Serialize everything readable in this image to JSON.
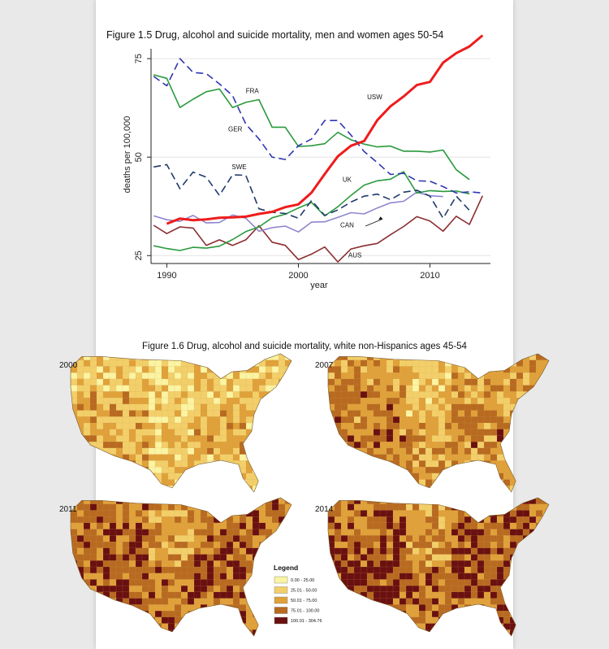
{
  "colors": {
    "USW": "#ee1c1c",
    "FRA": "#2a9a3c",
    "GER": "#2f37b0",
    "SWE": "#203a6a",
    "UK": "#2a9a3c",
    "CAN": "#8f86d0",
    "AUS": "#8b2e30"
  },
  "chart_data": {
    "type": "line",
    "title": "Figure 1.5  Drug, alcohol and suicide mortality, men and women ages 50-54",
    "xlabel": "year",
    "ylabel": "deaths per 100,000",
    "xlim": [
      1988.8,
      2014.6
    ],
    "ylim": [
      23,
      77.5
    ],
    "xticks": [
      1990,
      2000,
      2010
    ],
    "yticks": [
      25,
      50,
      75
    ],
    "grid": true,
    "series": [
      {
        "name": "USW",
        "style": "solid-thick",
        "x": [
          1990,
          1991,
          1992,
          1993,
          1994,
          1995,
          1996,
          1997,
          1998,
          1999,
          2000,
          2001,
          2002,
          2003,
          2004,
          2005,
          2006,
          2007,
          2008,
          2009,
          2010,
          2011,
          2012,
          2013,
          2014
        ],
        "values": [
          33.1,
          34.4,
          34.0,
          34.2,
          34.6,
          34.7,
          34.9,
          35.6,
          36.1,
          37.3,
          38.0,
          41.0,
          45.7,
          50.2,
          52.9,
          54.1,
          59.4,
          62.9,
          65.4,
          68.3,
          69.1,
          74.0,
          76.4,
          78.1,
          80.9
        ]
      },
      {
        "name": "FRA",
        "style": "solid",
        "x": [
          1989,
          1990,
          1991,
          1992,
          1993,
          1994,
          1995,
          1996,
          1997,
          1998,
          1999,
          2000,
          2001,
          2002,
          2003,
          2004,
          2005,
          2006,
          2007,
          2008,
          2009,
          2010,
          2011,
          2012,
          2013
        ],
        "values": [
          70.9,
          70.0,
          62.6,
          64.7,
          66.6,
          67.3,
          62.6,
          63.9,
          64.6,
          57.6,
          57.6,
          52.7,
          52.9,
          53.4,
          56.3,
          54.4,
          53.3,
          52.6,
          52.8,
          51.5,
          51.5,
          51.3,
          51.8,
          46.8,
          44.3
        ]
      },
      {
        "name": "GER",
        "style": "dashed",
        "x": [
          1989,
          1990,
          1991,
          1992,
          1993,
          1994,
          1995,
          1996,
          1997,
          1998,
          1999,
          2000,
          2001,
          2002,
          2003,
          2004,
          2005,
          2006,
          2007,
          2008,
          2009,
          2010,
          2011,
          2012,
          2013,
          2014
        ],
        "values": [
          70.5,
          68.1,
          75.0,
          71.5,
          71.2,
          68.6,
          65.6,
          58.4,
          54.6,
          50.0,
          49.4,
          52.9,
          54.6,
          59.3,
          59.3,
          55.6,
          51.4,
          48.6,
          45.6,
          45.9,
          44.0,
          43.9,
          42.5,
          40.9,
          41.2,
          40.9
        ]
      },
      {
        "name": "SWE",
        "style": "dashed",
        "x": [
          1989,
          1990,
          1991,
          1992,
          1993,
          1994,
          1995,
          1996,
          1997,
          1998,
          1999,
          2000,
          2001,
          2002,
          2003,
          2004,
          2005,
          2006,
          2007,
          2008,
          2009,
          2010,
          2011,
          2012,
          2013
        ],
        "values": [
          47.5,
          48.1,
          42.0,
          46.2,
          44.9,
          40.3,
          45.5,
          45.4,
          36.9,
          36.0,
          35.7,
          34.5,
          39.0,
          35.2,
          36.6,
          38.6,
          40.1,
          40.6,
          39.2,
          41.1,
          41.6,
          40.1,
          34.5,
          40.1,
          36.5
        ]
      },
      {
        "name": "UK",
        "style": "solid",
        "x": [
          1989,
          1990,
          1991,
          1992,
          1993,
          1994,
          1995,
          1996,
          1997,
          1998,
          1999,
          2000,
          2001,
          2002,
          2003,
          2004,
          2005,
          2006,
          2007,
          2008,
          2009,
          2010,
          2011,
          2012,
          2013
        ],
        "values": [
          27.5,
          26.8,
          26.3,
          27.1,
          26.9,
          27.4,
          29.1,
          31.1,
          32.3,
          34.6,
          35.5,
          37.1,
          38.5,
          35.1,
          37.4,
          40.3,
          42.9,
          44.0,
          44.4,
          46.3,
          40.9,
          41.5,
          41.3,
          41.4,
          40.7
        ]
      },
      {
        "name": "CAN",
        "style": "solid",
        "x": [
          1989,
          1990,
          1991,
          1992,
          1993,
          1994,
          1995,
          1996,
          1997,
          1998,
          1999,
          2000,
          2001,
          2002,
          2003,
          2004,
          2005,
          2006,
          2007,
          2008,
          2009,
          2010,
          2011
        ],
        "values": [
          35.1,
          34.1,
          33.7,
          35.2,
          33.3,
          33.4,
          35.3,
          34.5,
          31.2,
          32.1,
          32.5,
          31.0,
          33.5,
          33.6,
          34.7,
          35.9,
          35.6,
          37.1,
          38.4,
          38.8,
          41.1,
          40.2,
          40.0
        ]
      },
      {
        "name": "AUS",
        "style": "solid",
        "x": [
          1989,
          1990,
          1991,
          1992,
          1993,
          1994,
          1995,
          1996,
          1997,
          1998,
          1999,
          2000,
          2001,
          2002,
          2003,
          2004,
          2005,
          2006,
          2007,
          2008,
          2009,
          2010,
          2011,
          2012,
          2013,
          2014
        ],
        "values": [
          32.7,
          30.6,
          32.3,
          32.0,
          27.6,
          29.0,
          27.6,
          29.0,
          32.6,
          28.4,
          27.6,
          24.0,
          25.4,
          27.2,
          23.4,
          26.7,
          27.5,
          28.1,
          30.3,
          32.4,
          34.9,
          33.8,
          31.2,
          35.0,
          32.9,
          40.2
        ]
      }
    ],
    "annotations": [
      "FRA",
      "USW",
      "GER",
      "SWE",
      "UK",
      "CAN",
      "AUS"
    ]
  },
  "maps": {
    "title": "Figure 1.6  Drug, alcohol and suicide mortality, white non-Hispanics ages 45-54",
    "panels": [
      {
        "year": "2000",
        "level": 1.2
      },
      {
        "year": "2007",
        "level": 2.0
      },
      {
        "year": "2011",
        "level": 2.7
      },
      {
        "year": "2014",
        "level": 2.9
      }
    ],
    "legend": {
      "title": "Legend",
      "items": [
        {
          "label": "0.00 - 25.00",
          "color": "#fbf4a2"
        },
        {
          "label": "25.01 - 50.00",
          "color": "#f3cf6a"
        },
        {
          "label": "50.01 - 75.00",
          "color": "#e0a13a"
        },
        {
          "label": "75.01 - 100.00",
          "color": "#b86a20"
        },
        {
          "label": "100.01 - 304.76",
          "color": "#6a1010"
        }
      ]
    }
  }
}
